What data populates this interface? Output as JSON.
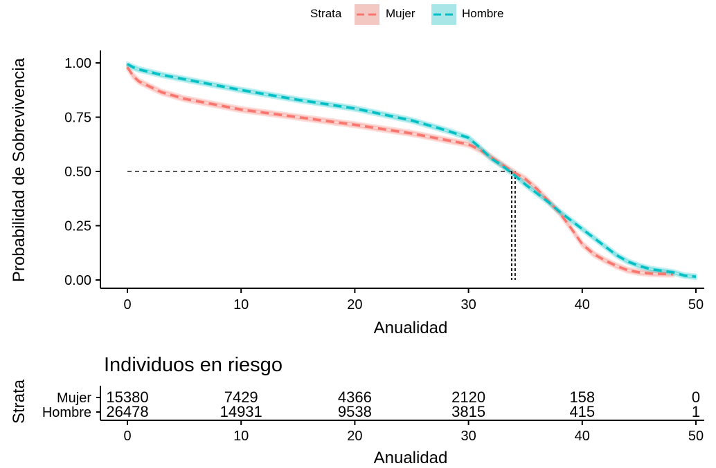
{
  "legend": {
    "title": "Strata",
    "items": [
      {
        "label": "Mujer",
        "color": "#F8766D"
      },
      {
        "label": "Hombre",
        "color": "#00BFC4"
      }
    ]
  },
  "risk_table": {
    "title": "Individuos en riesgo",
    "ylabel": "Strata",
    "xlabel": "Anualidad",
    "times": [
      0,
      10,
      20,
      30,
      40,
      50
    ],
    "rows": [
      {
        "label": "Mujer",
        "color": "#F8766D",
        "values": [
          "15380",
          "7429",
          "4366",
          "2120",
          "158",
          "0"
        ]
      },
      {
        "label": "Hombre",
        "color": "#00BFC4",
        "values": [
          "26478",
          "14931",
          "9538",
          "3815",
          "415",
          "1"
        ]
      }
    ]
  },
  "chart_data": {
    "type": "line",
    "subtype": "kaplan-meier survival curve",
    "xlabel": "Anualidad",
    "ylabel": "Probabilidad de Sobrevivencia",
    "xlim": [
      0,
      50
    ],
    "ylim": [
      0,
      1
    ],
    "x_ticks": [
      0,
      10,
      20,
      30,
      40,
      50
    ],
    "y_ticks": [
      "0.00",
      "0.25",
      "0.50",
      "0.75",
      "1.00"
    ],
    "y_tick_values": [
      0,
      0.25,
      0.5,
      0.75,
      1
    ],
    "grid": false,
    "legend_position": "top",
    "line_style": "dashed",
    "confidence_bands": true,
    "median_reference": {
      "y": 0.5,
      "x_values": [
        33.8,
        34.1
      ]
    },
    "series": [
      {
        "name": "Mujer",
        "color": "#F8766D",
        "x": [
          0,
          0.5,
          1,
          2,
          3,
          4,
          5,
          7,
          10,
          15,
          20,
          25,
          28,
          30,
          31,
          32,
          33,
          34,
          35,
          36,
          37,
          38,
          39,
          40,
          41,
          42,
          43,
          44,
          45,
          46,
          47,
          48
        ],
        "y": [
          0.98,
          0.94,
          0.915,
          0.89,
          0.865,
          0.85,
          0.835,
          0.815,
          0.785,
          0.75,
          0.715,
          0.675,
          0.645,
          0.625,
          0.6,
          0.565,
          0.53,
          0.495,
          0.465,
          0.42,
          0.365,
          0.31,
          0.24,
          0.165,
          0.12,
          0.09,
          0.065,
          0.045,
          0.035,
          0.03,
          0.028,
          0.027
        ],
        "ci_halfwidth": 0.01
      },
      {
        "name": "Hombre",
        "color": "#00BFC4",
        "x": [
          0,
          0.5,
          1,
          3,
          5,
          10,
          15,
          20,
          25,
          28,
          30,
          31,
          32,
          33,
          34,
          35,
          36,
          37,
          38,
          39,
          40,
          41,
          42,
          43,
          44,
          45,
          46,
          48,
          49,
          50
        ],
        "y": [
          0.995,
          0.98,
          0.97,
          0.945,
          0.925,
          0.875,
          0.83,
          0.79,
          0.735,
          0.69,
          0.655,
          0.61,
          0.56,
          0.525,
          0.485,
          0.44,
          0.4,
          0.36,
          0.315,
          0.275,
          0.235,
          0.195,
          0.155,
          0.115,
          0.085,
          0.065,
          0.05,
          0.035,
          0.02,
          0.015
        ],
        "ci_halfwidth": 0.009
      }
    ]
  }
}
